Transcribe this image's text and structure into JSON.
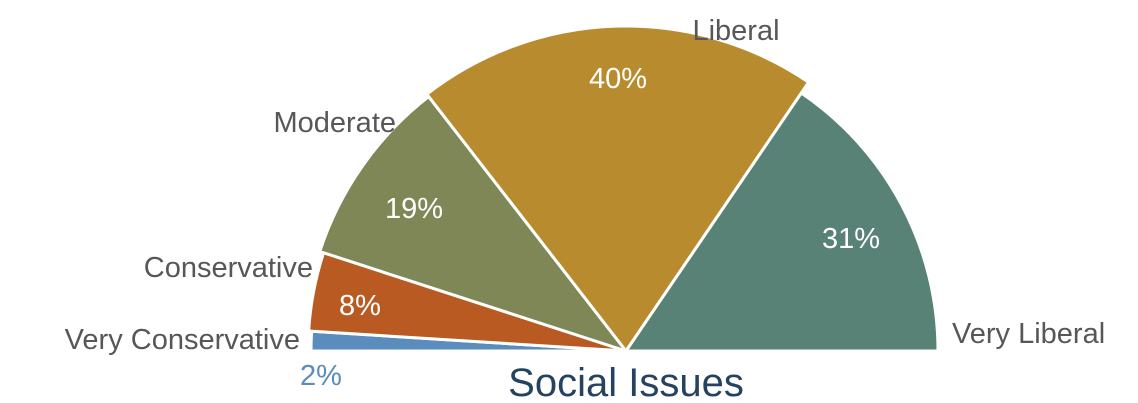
{
  "chart_data": {
    "type": "pie",
    "subtype": "half-donut",
    "title": "Social Issues",
    "title_color": "#254360",
    "label_color": "#575757",
    "slices": [
      {
        "label": "Very Conservative",
        "value": 2,
        "display": "2%",
        "color": "#5a8cbd",
        "value_color": "#5a8cbd"
      },
      {
        "label": "Conservative",
        "value": 8,
        "display": "8%",
        "color": "#ba5a23",
        "value_color": "#ffffff"
      },
      {
        "label": "Moderate",
        "value": 19,
        "display": "19%",
        "color": "#7f8757",
        "value_color": "#ffffff"
      },
      {
        "label": "Liberal",
        "value": 40,
        "display": "40%",
        "color": "#b98b2f",
        "value_color": "#ffffff"
      },
      {
        "label": "Very Liberal",
        "value": 31,
        "display": "31%",
        "color": "#578275",
        "value_color": "#ffffff"
      }
    ]
  }
}
